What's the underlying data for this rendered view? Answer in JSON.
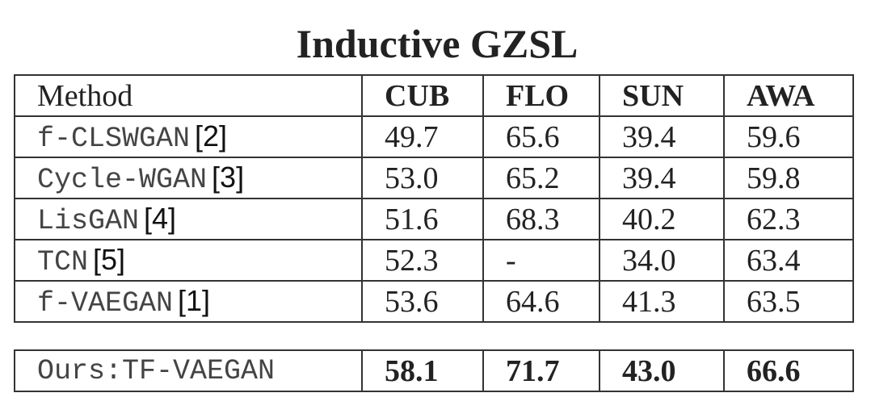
{
  "title": "Inductive GZSL",
  "table": {
    "header": [
      "Method",
      "CUB",
      "FLO",
      "SUN",
      "AWA"
    ],
    "rows": [
      {
        "method": "f-CLSWGAN",
        "ref": "[2]",
        "values": [
          "49.7",
          "65.6",
          "39.4",
          "59.6"
        ]
      },
      {
        "method": "Cycle-WGAN",
        "ref": "[3]",
        "values": [
          "53.0",
          "65.2",
          "39.4",
          "59.8"
        ]
      },
      {
        "method": "LisGAN",
        "ref": "[4]",
        "values": [
          "51.6",
          "68.3",
          "40.2",
          "62.3"
        ]
      },
      {
        "method": "TCN",
        "ref": "[5]",
        "values": [
          "52.3",
          "-",
          "34.0",
          "63.4"
        ]
      },
      {
        "method": "f-VAEGAN",
        "ref": "[1]",
        "values": [
          "53.6",
          "64.6",
          "41.3",
          "63.5"
        ]
      }
    ],
    "final_row": {
      "method": "Ours:TF-VAEGAN",
      "values": [
        "58.1",
        "71.7",
        "43.0",
        "66.6"
      ]
    }
  }
}
